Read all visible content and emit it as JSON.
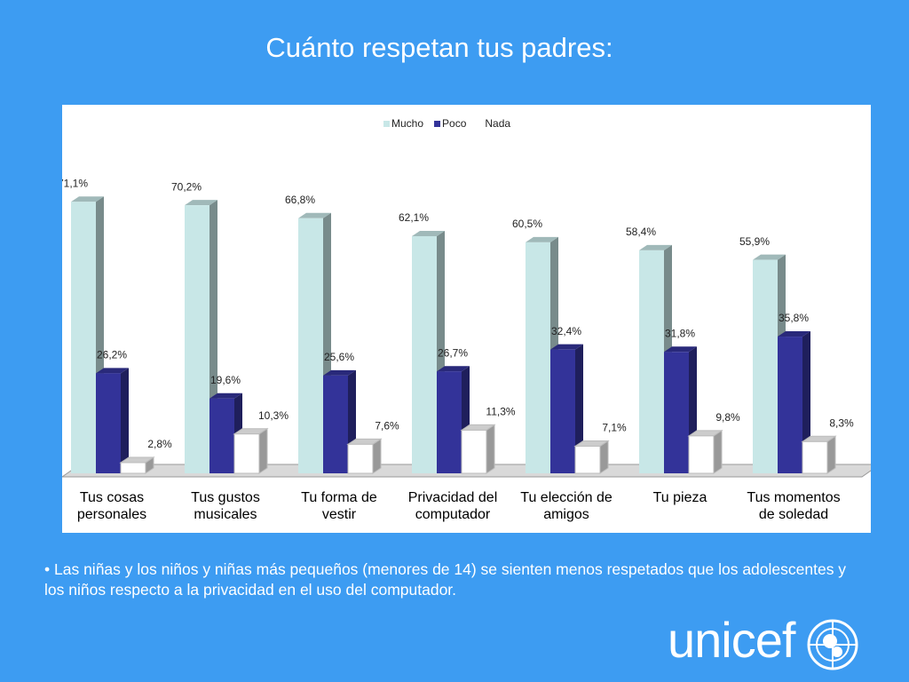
{
  "title": "Cuánto respetan tus padres:",
  "chart_data": {
    "type": "bar3d",
    "categories": [
      "Tus cosas personales",
      "Tus gustos musicales",
      "Tu forma de vestir",
      "Privacidad del computador",
      "Tu elección de amigos",
      "Tu pieza",
      "Tus momentos de soledad"
    ],
    "series": [
      {
        "name": "Mucho",
        "color": "#c8e7e7",
        "values": [
          71.1,
          70.2,
          66.8,
          62.1,
          60.5,
          58.4,
          55.9
        ],
        "value_labels": [
          "71,1%",
          "70,2%",
          "66,8%",
          "62,1%",
          "60,5%",
          "58,4%",
          "55,9%"
        ]
      },
      {
        "name": "Poco",
        "color": "#333399",
        "values": [
          26.2,
          19.6,
          25.6,
          26.7,
          32.4,
          31.8,
          35.8
        ],
        "value_labels": [
          "26,2%",
          "19,6%",
          "25,6%",
          "26,7%",
          "32,4%",
          "31,8%",
          "35,8%"
        ]
      },
      {
        "name": "Nada",
        "color": "#ffffff",
        "values": [
          2.8,
          10.3,
          7.6,
          11.3,
          7.1,
          9.8,
          8.3
        ],
        "value_labels": [
          "2,8%",
          "10,3%",
          "7,6%",
          "11,3%",
          "7,1%",
          "9,8%",
          "8,3%"
        ]
      }
    ],
    "ylim": [
      0,
      80
    ],
    "legend": "top"
  },
  "note": "Las niñas y  los niños y niñas más pequeños (menores de 14) se sienten menos respetados que los adolescentes y los niños respecto a la privacidad  en el uso del computador.",
  "logo": "unicef"
}
